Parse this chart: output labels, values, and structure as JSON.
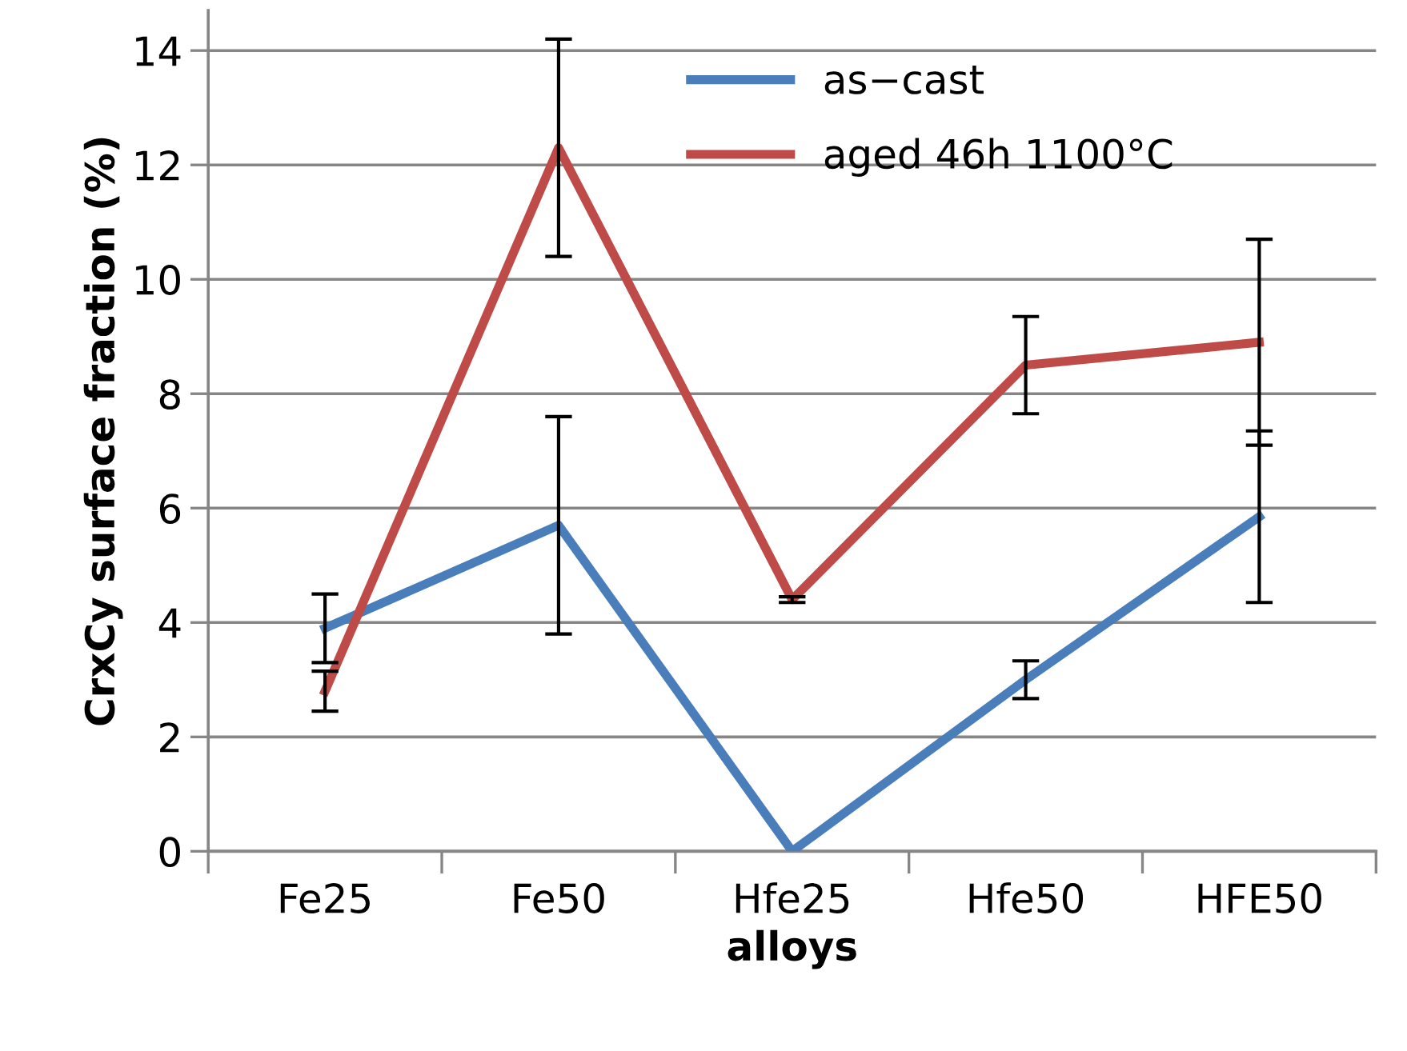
{
  "chart_data": {
    "type": "line",
    "xlabel": "alloys",
    "ylabel": "CrxCy surface fraction (%)",
    "categories": [
      "Fe25",
      "Fe50",
      "Hfe25",
      "Hfe50",
      "HFE50"
    ],
    "series": [
      {
        "name": "as−cast",
        "color": "#4a7ebb",
        "values": [
          3.9,
          5.7,
          0,
          3.0,
          5.85
        ],
        "errors": [
          0.6,
          1.9,
          null,
          0.33,
          1.5
        ]
      },
      {
        "name": "aged 46h 1100°C",
        "color": "#be4b48",
        "values": [
          2.8,
          12.3,
          4.4,
          8.5,
          8.9
        ],
        "errors": [
          0.35,
          1.9,
          0.05,
          0.85,
          1.8
        ]
      }
    ],
    "ylim": [
      0,
      14.7
    ],
    "yticks": [
      0,
      2,
      4,
      6,
      8,
      10,
      12,
      14
    ],
    "grid": "y",
    "legend": "top",
    "marker": "none",
    "line_style": "solid"
  }
}
